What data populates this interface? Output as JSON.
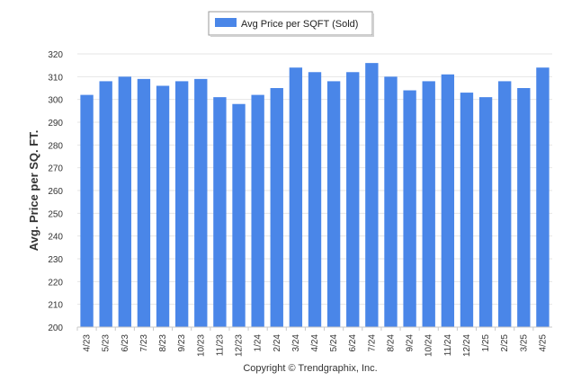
{
  "legend": {
    "label": "Avg Price per SQFT (Sold)"
  },
  "credit": "Copyright © Trendgraphix, Inc.",
  "colors": {
    "bar": "#4a86e8",
    "grid": "#e6e6e6",
    "axis": "#c8c8c8"
  },
  "chart_data": {
    "type": "bar",
    "title": "",
    "xlabel": "",
    "ylabel": "Avg. Price per SQ. FT.",
    "ylim": [
      200,
      320
    ],
    "yticks": [
      200,
      210,
      220,
      230,
      240,
      250,
      260,
      270,
      280,
      290,
      300,
      310,
      320
    ],
    "grid": true,
    "legend_position": "top-center",
    "categories": [
      "4/23",
      "5/23",
      "6/23",
      "7/23",
      "8/23",
      "9/23",
      "10/23",
      "11/23",
      "12/23",
      "1/24",
      "2/24",
      "3/24",
      "4/24",
      "5/24",
      "6/24",
      "7/24",
      "8/24",
      "9/24",
      "10/24",
      "11/24",
      "12/24",
      "1/25",
      "2/25",
      "3/25",
      "4/25"
    ],
    "series": [
      {
        "name": "Avg Price per SQFT (Sold)",
        "values": [
          302,
          308,
          310,
          309,
          306,
          308,
          309,
          301,
          298,
          302,
          305,
          314,
          312,
          308,
          312,
          316,
          310,
          304,
          308,
          311,
          303,
          301,
          308,
          305,
          314
        ]
      }
    ]
  }
}
